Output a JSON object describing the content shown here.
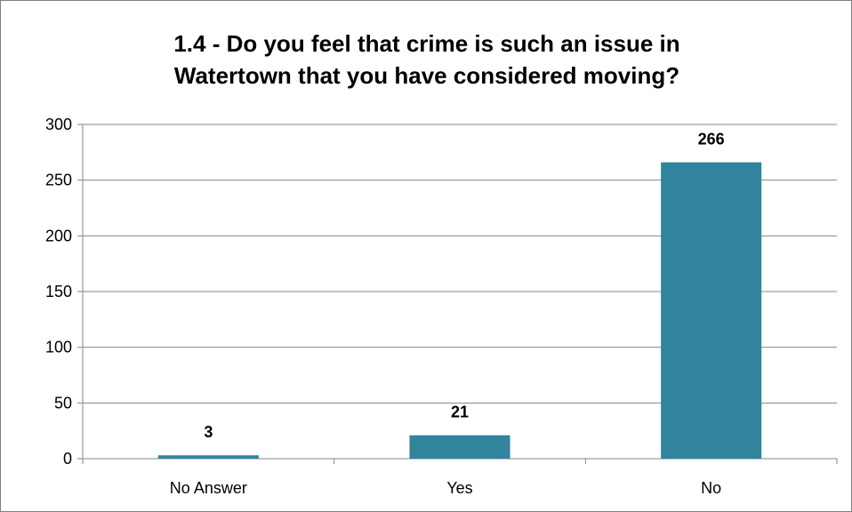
{
  "chart_data": {
    "type": "bar",
    "title": "1.4 - Do you feel that crime is such an issue in\nWatertown that you have considered moving?",
    "categories": [
      "No Answer",
      "Yes",
      "No"
    ],
    "values": [
      3,
      21,
      266
    ],
    "data_labels": [
      "3",
      "21",
      "266"
    ],
    "ylim": [
      0,
      300
    ],
    "yticks": [
      0,
      50,
      100,
      150,
      200,
      250,
      300
    ],
    "ytick_labels": [
      "0",
      "50",
      "100",
      "150",
      "200",
      "250",
      "300"
    ],
    "xlabel": "",
    "ylabel": "",
    "grid": true,
    "legend": "none",
    "colors": {
      "bar": "#31849b",
      "grid": "#868686",
      "axis": "#868686"
    }
  }
}
